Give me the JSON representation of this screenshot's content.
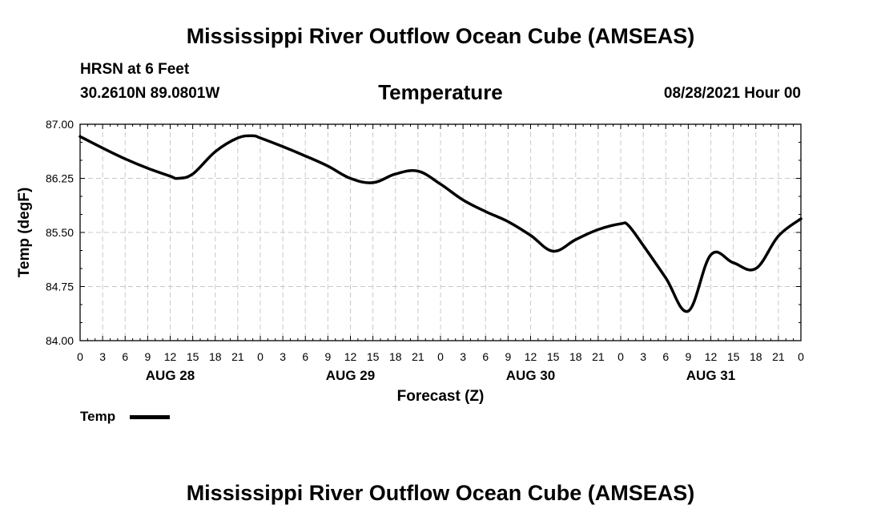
{
  "header": {
    "title_top": "Mississippi River Outflow Ocean Cube (AMSEAS)",
    "station": "HRSN at 6 Feet",
    "coords": "30.2610N  89.0801W",
    "variable": "Temperature",
    "run_time": "08/28/2021 Hour 00"
  },
  "footer": {
    "title_bottom": "Mississippi River Outflow Ocean Cube (AMSEAS)"
  },
  "legend": {
    "label": "Temp"
  },
  "chart_data": {
    "type": "line",
    "title": "Temperature",
    "xlabel": "Forecast (Z)",
    "ylabel": "Temp (degF)",
    "ylim": [
      84.0,
      87.0
    ],
    "xlim_hours": [
      0,
      96
    ],
    "y_ticks": [
      "84.00",
      "84.75",
      "85.50",
      "86.25",
      "87.00"
    ],
    "y_tick_values": [
      84.0,
      84.75,
      85.5,
      86.25,
      87.0
    ],
    "x_ticks_hours": [
      0,
      3,
      6,
      9,
      12,
      15,
      18,
      21,
      24,
      27,
      30,
      33,
      36,
      39,
      42,
      45,
      48,
      51,
      54,
      57,
      60,
      63,
      66,
      69,
      72,
      75,
      78,
      81,
      84,
      87,
      90,
      93,
      96
    ],
    "x_tick_labels": [
      "0",
      "3",
      "6",
      "9",
      "12",
      "15",
      "18",
      "21",
      "0",
      "3",
      "6",
      "9",
      "12",
      "15",
      "18",
      "21",
      "0",
      "3",
      "6",
      "9",
      "12",
      "15",
      "18",
      "21",
      "0",
      "3",
      "6",
      "9",
      "12",
      "15",
      "18",
      "21",
      "0"
    ],
    "day_labels": [
      {
        "hour": 12,
        "label": "AUG 28"
      },
      {
        "hour": 36,
        "label": "AUG 29"
      },
      {
        "hour": 60,
        "label": "AUG 30"
      },
      {
        "hour": 84,
        "label": "AUG 31"
      }
    ],
    "grid": true,
    "series": [
      {
        "name": "Temp",
        "color": "#000000",
        "x": [
          0,
          3,
          6,
          9,
          12,
          13,
          15,
          18,
          21,
          23,
          24,
          27,
          30,
          33,
          36,
          39,
          42,
          45,
          48,
          51,
          54,
          57,
          60,
          63,
          66,
          69,
          72,
          73,
          75,
          78,
          81,
          84,
          87,
          90,
          93,
          96
        ],
        "y": [
          86.83,
          86.67,
          86.52,
          86.39,
          86.28,
          86.25,
          86.31,
          86.62,
          86.81,
          86.84,
          86.81,
          86.69,
          86.56,
          86.42,
          86.25,
          86.19,
          86.31,
          86.35,
          86.17,
          85.95,
          85.79,
          85.65,
          85.46,
          85.24,
          85.4,
          85.54,
          85.62,
          85.6,
          85.32,
          84.87,
          84.41,
          85.19,
          85.08,
          85.0,
          85.45,
          85.69
        ]
      }
    ]
  }
}
